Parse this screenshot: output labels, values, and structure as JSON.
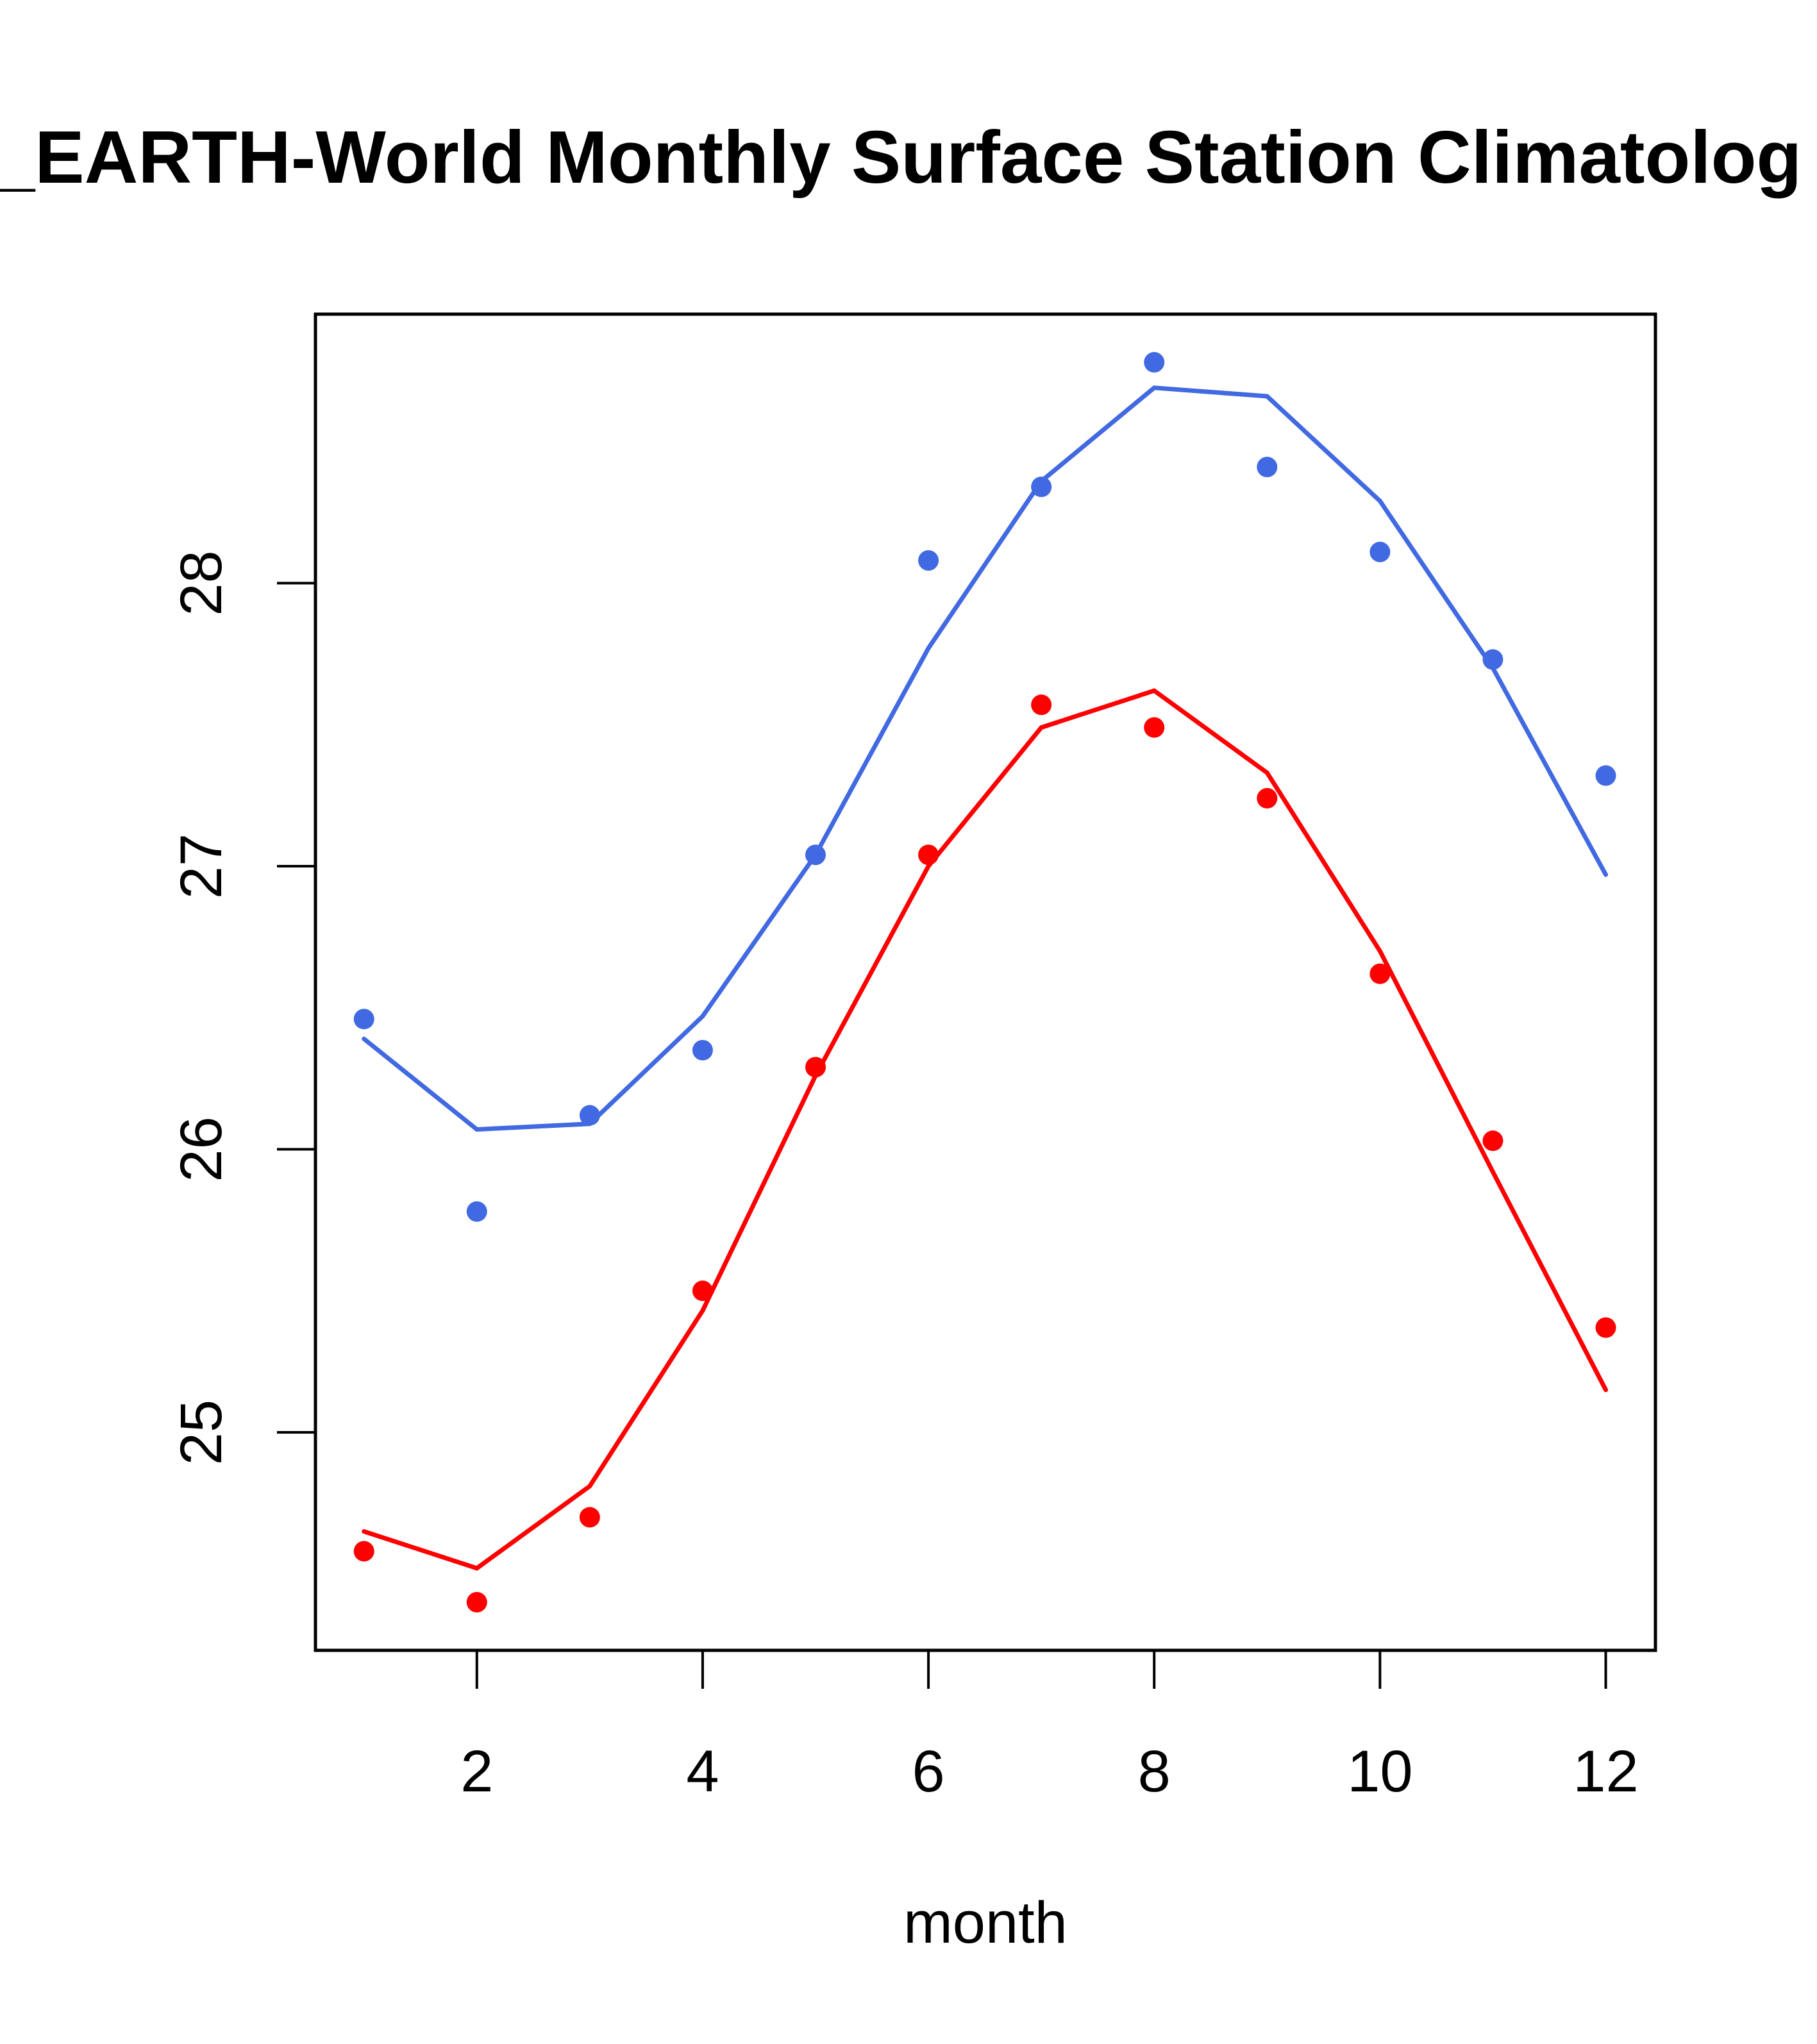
{
  "chart_data": {
    "type": "line",
    "title": "_EARTH-World Monthly Surface Station Climatolog",
    "xlabel": "month",
    "ylabel": "",
    "xlim": [
      0.57,
      12.44
    ],
    "ylim": [
      24.23,
      28.95
    ],
    "xticks": [
      2,
      4,
      6,
      8,
      10,
      12
    ],
    "xtick_labels": [
      "2",
      "4",
      "6",
      "8",
      "10",
      "12"
    ],
    "yticks": [
      25,
      26,
      27,
      28
    ],
    "ytick_labels": [
      "25",
      "26",
      "27",
      "28"
    ],
    "grid": false,
    "legend": null,
    "x": [
      1,
      2,
      3,
      4,
      5,
      6,
      7,
      8,
      9,
      10,
      11,
      12
    ],
    "series": [
      {
        "name": "blue-points",
        "kind": "scatter",
        "color": "#4169E1",
        "values": [
          26.46,
          25.78,
          26.12,
          26.35,
          27.04,
          28.08,
          28.34,
          28.78,
          28.41,
          28.11,
          27.73,
          27.32
        ]
      },
      {
        "name": "blue-line",
        "kind": "line",
        "color": "#4169E1",
        "values": [
          26.39,
          26.07,
          26.09,
          26.47,
          27.04,
          27.77,
          28.36,
          28.69,
          28.66,
          28.29,
          27.7,
          26.97
        ]
      },
      {
        "name": "red-points",
        "kind": "scatter",
        "color": "#FF0000",
        "values": [
          24.58,
          24.4,
          24.7,
          25.5,
          26.29,
          27.04,
          27.57,
          27.49,
          27.24,
          26.62,
          26.03,
          25.37
        ]
      },
      {
        "name": "red-line",
        "kind": "line",
        "color": "#FF0000",
        "values": [
          24.65,
          24.52,
          24.81,
          25.43,
          26.26,
          27.0,
          27.49,
          27.62,
          27.33,
          26.7,
          25.92,
          25.15
        ]
      }
    ]
  }
}
